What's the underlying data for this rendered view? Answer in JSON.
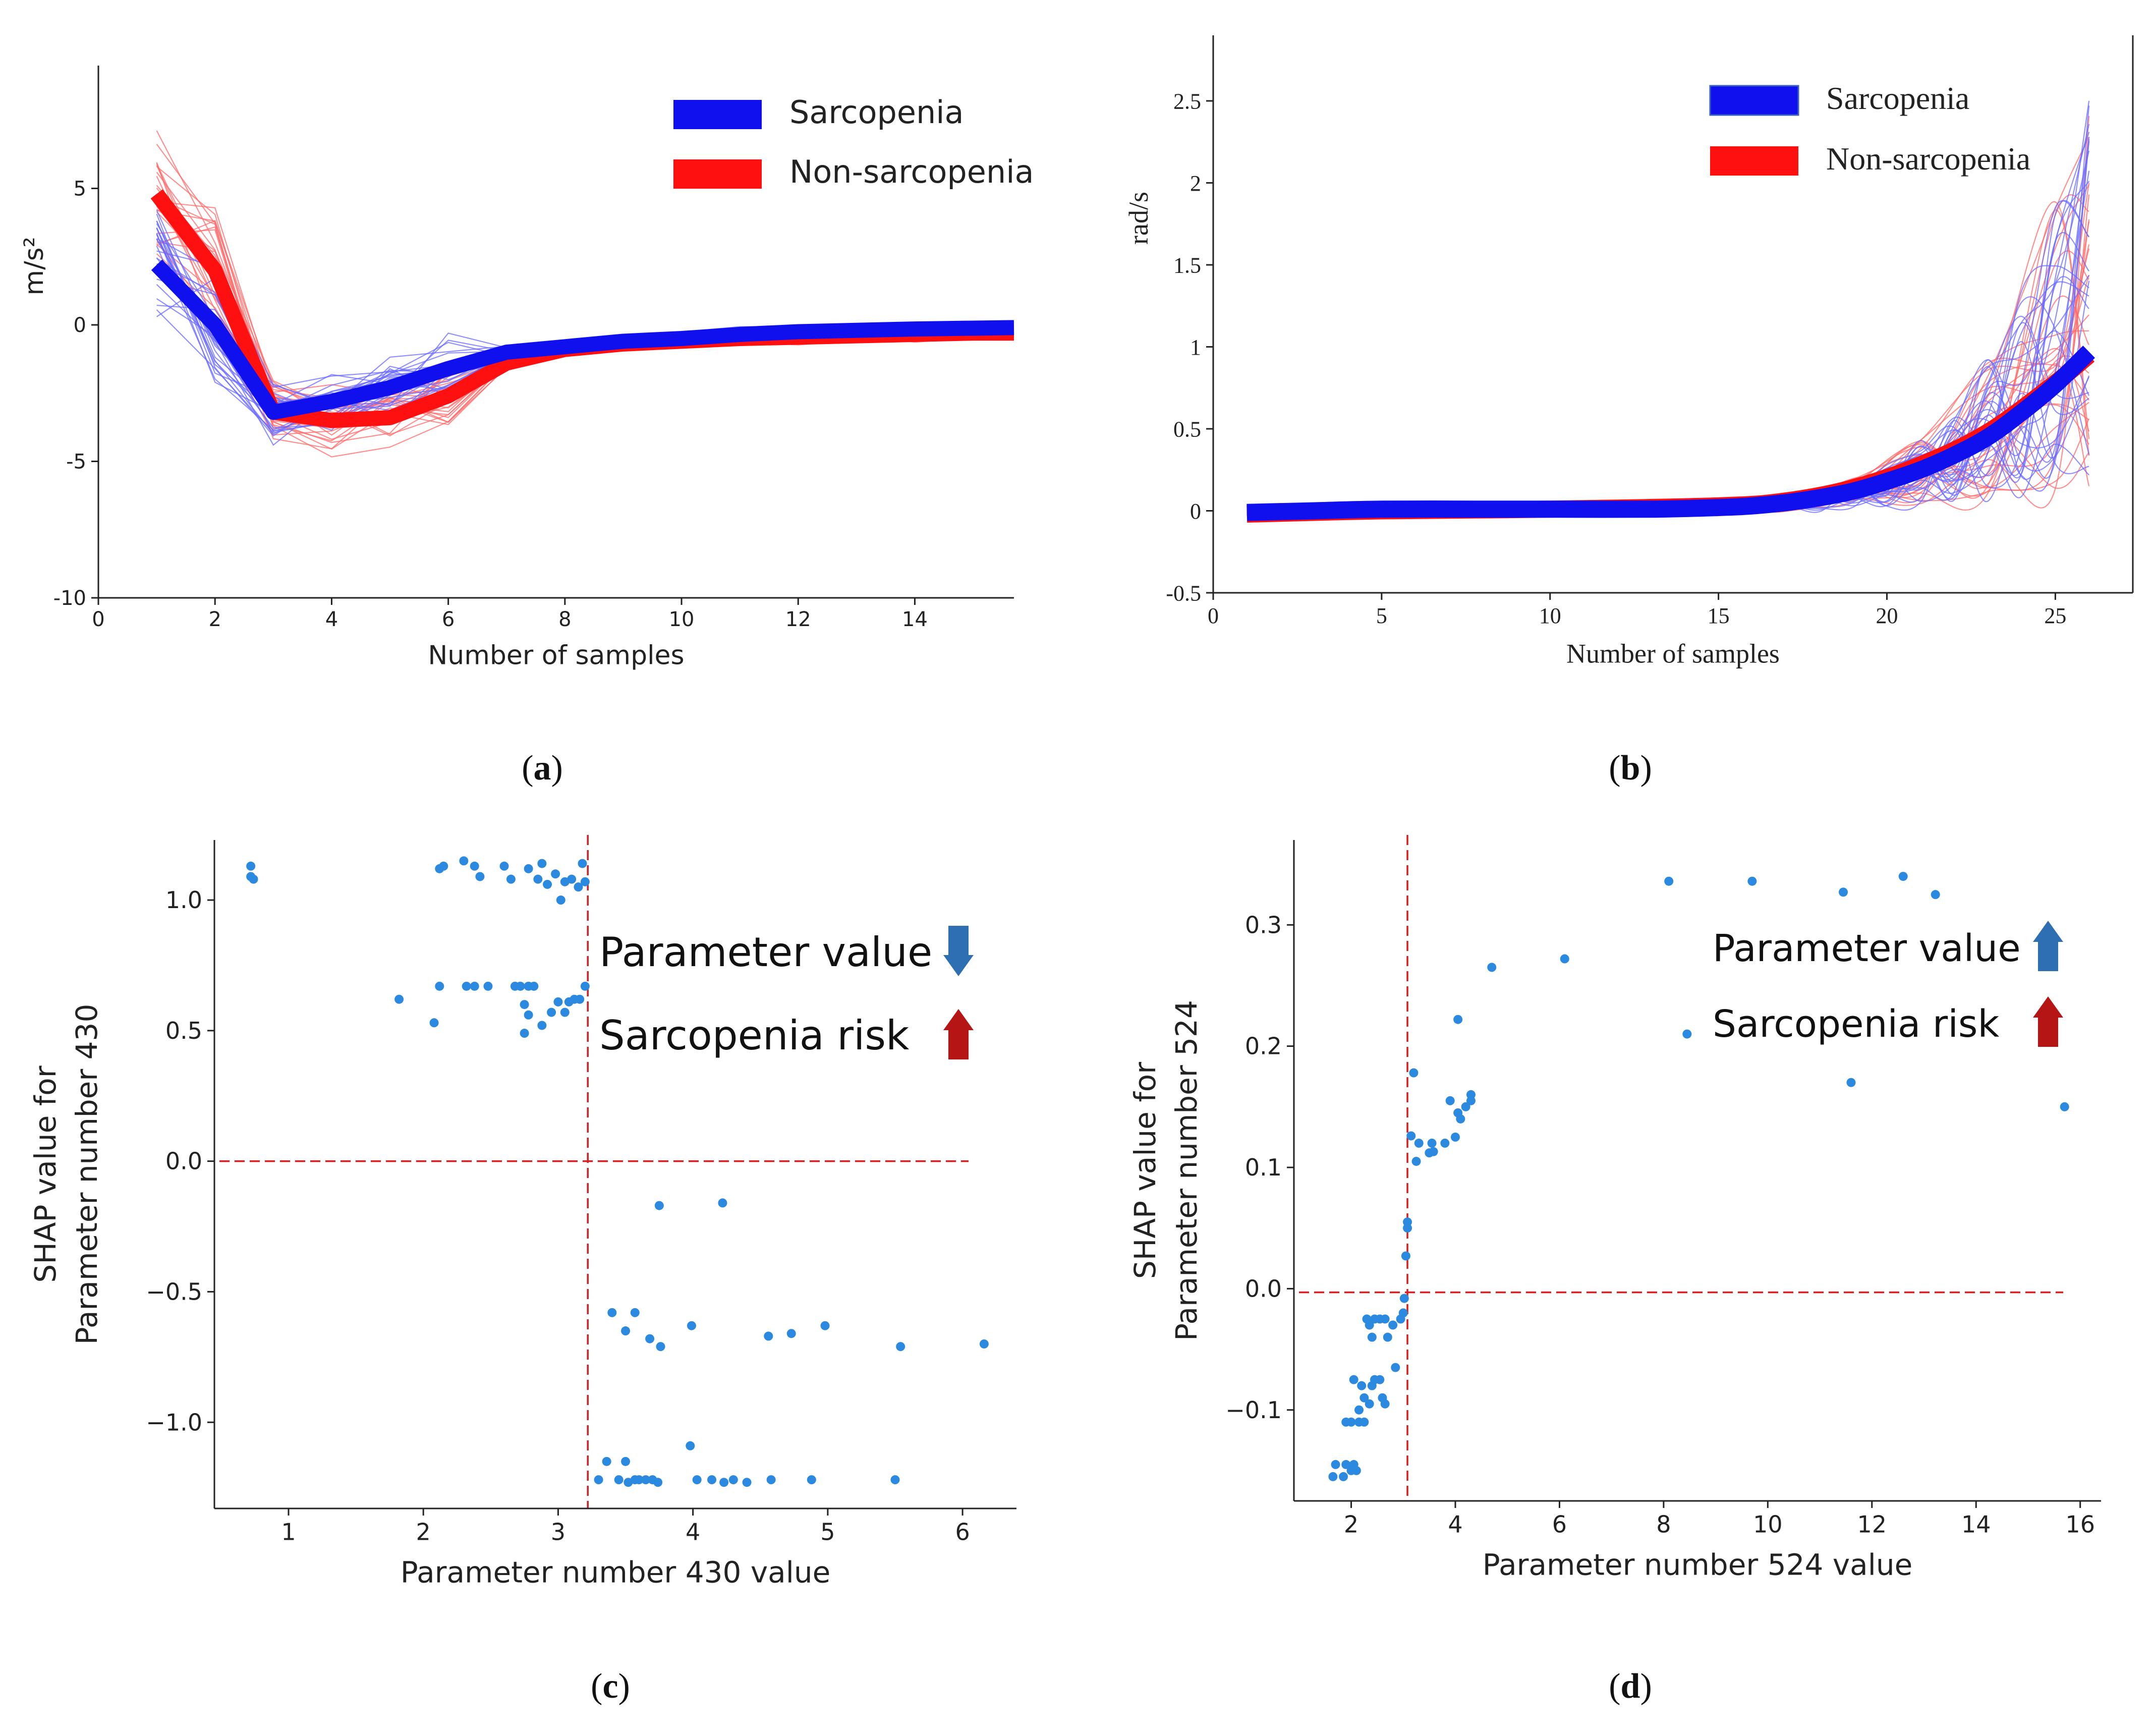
{
  "colors": {
    "sarcopenia": "#1010ee",
    "non_sarcopenia": "#ff1010",
    "thin_blue": "#6a6aff",
    "thin_red": "#ff6a6a",
    "dot": "#2b8ae0",
    "ref_line": "#d42020",
    "arrow_blue": "#2e6fb4",
    "arrow_red": "#b51515",
    "axis": "#222222"
  },
  "panels": {
    "a": {
      "label_open": "(",
      "label_letter": "a",
      "label_close": ")"
    },
    "b": {
      "label_open": "(",
      "label_letter": "b",
      "label_close": ")"
    },
    "c": {
      "label_open": "(",
      "label_letter": "c",
      "label_close": ")"
    },
    "d": {
      "label_open": "(",
      "label_letter": "d",
      "label_close": ")"
    }
  },
  "chart_data": [
    {
      "id": "a",
      "type": "line",
      "title": "",
      "xlabel": "Number of samples",
      "ylabel": "m/s²",
      "xlim": [
        0,
        15.7
      ],
      "ylim": [
        -10,
        9.5
      ],
      "xticks": [
        0,
        2,
        4,
        6,
        8,
        10,
        12,
        14
      ],
      "yticks": [
        -10,
        -5,
        0,
        5
      ],
      "ytick_labels": [
        "-10",
        "-5",
        "0",
        "5"
      ],
      "legend": {
        "position": "top-right",
        "entries": [
          "Sarcopenia",
          "Non-sarcopenia"
        ]
      },
      "series": [
        {
          "name": "Non-sarcopenia",
          "color_key": "non_sarcopenia",
          "x": [
            1,
            2,
            3,
            4,
            5,
            6,
            7,
            8,
            9,
            10,
            11,
            12,
            13,
            14,
            15,
            15.7
          ],
          "values": [
            4.8,
            2.0,
            -3.2,
            -3.5,
            -3.4,
            -2.6,
            -1.4,
            -0.9,
            -0.7,
            -0.6,
            -0.5,
            -0.45,
            -0.4,
            -0.35,
            -0.3,
            -0.3
          ]
        },
        {
          "name": "Sarcopenia",
          "color_key": "sarcopenia",
          "x": [
            1,
            2,
            3,
            4,
            5,
            6,
            7,
            8,
            9,
            10,
            11,
            12,
            13,
            14,
            15,
            15.7
          ],
          "values": [
            2.2,
            0.0,
            -3.2,
            -2.8,
            -2.3,
            -1.6,
            -1.0,
            -0.8,
            -0.6,
            -0.5,
            -0.35,
            -0.25,
            -0.2,
            -0.15,
            -0.12,
            -0.1
          ]
        }
      ]
    },
    {
      "id": "b",
      "type": "line",
      "title": "",
      "xlabel": "Number of samples",
      "ylabel": "rad/s",
      "xlim": [
        0,
        27.3
      ],
      "ylim": [
        -0.5,
        2.9
      ],
      "xticks": [
        0,
        5,
        10,
        15,
        20,
        25
      ],
      "yticks": [
        -0.5,
        0,
        0.5,
        1,
        1.5,
        2,
        2.5
      ],
      "ytick_labels": [
        "-0.5",
        "0",
        "0.5",
        "1",
        "1.5",
        "2",
        "2.5"
      ],
      "legend": {
        "position": "top-right",
        "entries": [
          "Sarcopenia",
          "Non-sarcopenia"
        ]
      },
      "series": [
        {
          "name": "Non-sarcopenia",
          "color_key": "non_sarcopenia",
          "x": [
            1,
            5,
            10,
            15,
            17,
            19,
            21,
            23,
            25,
            26
          ],
          "values": [
            -0.02,
            0.0,
            0.01,
            0.03,
            0.06,
            0.14,
            0.28,
            0.48,
            0.78,
            0.95
          ]
        },
        {
          "name": "Sarcopenia",
          "color_key": "sarcopenia",
          "x": [
            1,
            3,
            5,
            8,
            10,
            13,
            15,
            16,
            17,
            18,
            19,
            20,
            21,
            22,
            23,
            24,
            25,
            26
          ],
          "values": [
            -0.01,
            0.0,
            0.01,
            0.01,
            0.01,
            0.01,
            0.02,
            0.03,
            0.05,
            0.08,
            0.12,
            0.18,
            0.25,
            0.34,
            0.45,
            0.6,
            0.77,
            0.97
          ]
        }
      ]
    },
    {
      "id": "c",
      "type": "scatter",
      "title": "",
      "xlabel": "Parameter number 430 value",
      "ylabel_lines": [
        "SHAP value for",
        "Parameter number 430"
      ],
      "xlim": [
        0.45,
        6.4
      ],
      "ylim": [
        -1.33,
        1.23
      ],
      "xticks": [
        1,
        2,
        3,
        4,
        5,
        6
      ],
      "yticks": [
        -1.0,
        -0.5,
        0.0,
        0.5,
        1.0
      ],
      "ytick_labels": [
        "−1.0",
        "−0.5",
        "0.0",
        "0.5",
        "1.0"
      ],
      "ref_vline": 3.22,
      "ref_hline": 0.0,
      "annotations": [
        {
          "text": "Parameter value",
          "arrow": "down",
          "arrow_color_key": "arrow_blue"
        },
        {
          "text": "Sarcopenia risk",
          "arrow": "up",
          "arrow_color_key": "arrow_red"
        }
      ],
      "points": [
        [
          0.72,
          1.13
        ],
        [
          0.72,
          1.09
        ],
        [
          0.74,
          1.08
        ],
        [
          2.12,
          1.12
        ],
        [
          2.15,
          1.13
        ],
        [
          2.3,
          1.15
        ],
        [
          2.38,
          1.13
        ],
        [
          2.42,
          1.09
        ],
        [
          2.6,
          1.13
        ],
        [
          2.65,
          1.08
        ],
        [
          2.78,
          1.12
        ],
        [
          2.85,
          1.08
        ],
        [
          2.88,
          1.14
        ],
        [
          2.92,
          1.06
        ],
        [
          2.98,
          1.1
        ],
        [
          3.02,
          1.0
        ],
        [
          3.05,
          1.07
        ],
        [
          3.1,
          1.08
        ],
        [
          3.15,
          1.05
        ],
        [
          3.18,
          1.14
        ],
        [
          3.2,
          1.07
        ],
        [
          1.82,
          0.62
        ],
        [
          2.08,
          0.53
        ],
        [
          2.12,
          0.67
        ],
        [
          2.32,
          0.67
        ],
        [
          2.38,
          0.67
        ],
        [
          2.48,
          0.67
        ],
        [
          2.68,
          0.67
        ],
        [
          2.72,
          0.67
        ],
        [
          2.75,
          0.6
        ],
        [
          2.78,
          0.67
        ],
        [
          2.78,
          0.56
        ],
        [
          2.82,
          0.67
        ],
        [
          2.88,
          0.52
        ],
        [
          2.95,
          0.57
        ],
        [
          3.0,
          0.61
        ],
        [
          3.05,
          0.57
        ],
        [
          3.08,
          0.61
        ],
        [
          3.12,
          0.62
        ],
        [
          3.16,
          0.62
        ],
        [
          3.2,
          0.67
        ],
        [
          2.75,
          0.49
        ],
        [
          3.75,
          -0.17
        ],
        [
          4.22,
          -0.16
        ],
        [
          3.4,
          -0.58
        ],
        [
          3.5,
          -0.65
        ],
        [
          3.57,
          -0.58
        ],
        [
          3.68,
          -0.68
        ],
        [
          3.76,
          -0.71
        ],
        [
          3.99,
          -0.63
        ],
        [
          4.56,
          -0.67
        ],
        [
          4.73,
          -0.66
        ],
        [
          4.98,
          -0.63
        ],
        [
          5.54,
          -0.71
        ],
        [
          6.16,
          -0.7
        ],
        [
          3.3,
          -1.22
        ],
        [
          3.36,
          -1.15
        ],
        [
          3.45,
          -1.22
        ],
        [
          3.5,
          -1.15
        ],
        [
          3.52,
          -1.23
        ],
        [
          3.57,
          -1.22
        ],
        [
          3.6,
          -1.22
        ],
        [
          3.65,
          -1.22
        ],
        [
          3.7,
          -1.22
        ],
        [
          3.74,
          -1.23
        ],
        [
          3.98,
          -1.09
        ],
        [
          4.03,
          -1.22
        ],
        [
          4.14,
          -1.22
        ],
        [
          4.23,
          -1.23
        ],
        [
          4.3,
          -1.22
        ],
        [
          4.4,
          -1.23
        ],
        [
          4.58,
          -1.22
        ],
        [
          4.88,
          -1.22
        ],
        [
          5.5,
          -1.22
        ]
      ]
    },
    {
      "id": "d",
      "type": "scatter",
      "title": "",
      "xlabel": "Parameter number 524 value",
      "ylabel_lines": [
        "SHAP value for",
        "Parameter number 524"
      ],
      "xlim": [
        0.9,
        16.4
      ],
      "ylim": [
        -0.175,
        0.37
      ],
      "xticks": [
        2,
        4,
        6,
        8,
        10,
        12,
        14,
        16
      ],
      "yticks": [
        -0.1,
        0.0,
        0.1,
        0.2,
        0.3
      ],
      "ytick_labels": [
        "−0.1",
        "0.0",
        "0.1",
        "0.2",
        "0.3"
      ],
      "ref_vline": 3.08,
      "ref_hline": -0.003,
      "annotations": [
        {
          "text": "Parameter value",
          "arrow": "up",
          "arrow_color_key": "arrow_blue"
        },
        {
          "text": "Sarcopenia risk",
          "arrow": "up",
          "arrow_color_key": "arrow_red"
        }
      ],
      "points": [
        [
          8.1,
          0.336
        ],
        [
          9.7,
          0.336
        ],
        [
          11.45,
          0.327
        ],
        [
          12.6,
          0.34
        ],
        [
          13.22,
          0.325
        ],
        [
          4.7,
          0.265
        ],
        [
          6.1,
          0.272
        ],
        [
          8.45,
          0.21
        ],
        [
          11.6,
          0.17
        ],
        [
          15.7,
          0.15
        ],
        [
          4.05,
          0.222
        ],
        [
          3.2,
          0.178
        ],
        [
          3.15,
          0.126
        ],
        [
          3.25,
          0.105
        ],
        [
          3.3,
          0.12
        ],
        [
          3.5,
          0.112
        ],
        [
          3.55,
          0.12
        ],
        [
          3.58,
          0.113
        ],
        [
          3.8,
          0.12
        ],
        [
          3.9,
          0.155
        ],
        [
          4.0,
          0.125
        ],
        [
          4.05,
          0.145
        ],
        [
          4.1,
          0.14
        ],
        [
          4.2,
          0.15
        ],
        [
          4.3,
          0.16
        ],
        [
          4.3,
          0.155
        ],
        [
          3.08,
          0.055
        ],
        [
          3.08,
          0.05
        ],
        [
          3.05,
          0.027
        ],
        [
          3.02,
          -0.008
        ],
        [
          3.0,
          -0.02
        ],
        [
          2.95,
          -0.025
        ],
        [
          2.8,
          -0.03
        ],
        [
          2.85,
          -0.065
        ],
        [
          2.7,
          -0.04
        ],
        [
          2.65,
          -0.025
        ],
        [
          2.55,
          -0.025
        ],
        [
          2.45,
          -0.025
        ],
        [
          2.4,
          -0.04
        ],
        [
          2.35,
          -0.03
        ],
        [
          2.3,
          -0.025
        ],
        [
          2.45,
          -0.075
        ],
        [
          2.55,
          -0.075
        ],
        [
          2.6,
          -0.09
        ],
        [
          2.65,
          -0.095
        ],
        [
          2.4,
          -0.08
        ],
        [
          2.35,
          -0.095
        ],
        [
          2.25,
          -0.09
        ],
        [
          2.2,
          -0.08
        ],
        [
          2.15,
          -0.1
        ],
        [
          2.05,
          -0.075
        ],
        [
          2.0,
          -0.11
        ],
        [
          2.15,
          -0.11
        ],
        [
          2.25,
          -0.11
        ],
        [
          1.9,
          -0.11
        ],
        [
          1.7,
          -0.145
        ],
        [
          1.9,
          -0.145
        ],
        [
          2.05,
          -0.145
        ],
        [
          2.1,
          -0.15
        ],
        [
          1.85,
          -0.155
        ],
        [
          1.65,
          -0.155
        ],
        [
          2.0,
          -0.15
        ]
      ]
    }
  ]
}
